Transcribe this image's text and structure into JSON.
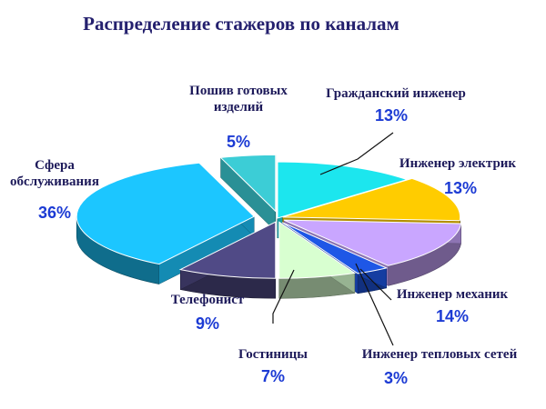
{
  "chart_data": {
    "type": "pie",
    "title": "Распределение стажеров по каналам",
    "labels": [
      "Гражданский инженер",
      "Инженер электрик",
      "Инженер механик",
      "Инженер  тепловых сетей",
      "Гостиницы",
      "Телефонист",
      "Сфера обслуживания",
      "Пошив готовых изделий"
    ],
    "label_lines": [
      [
        "Гражданский инженер"
      ],
      [
        "Инженер электрик"
      ],
      [
        "Инженер механик"
      ],
      [
        "Инженер  тепловых сетей"
      ],
      [
        "Гостиницы"
      ],
      [
        "Телефонист"
      ],
      [
        "Сфера",
        "обслуживания"
      ],
      [
        "Пошив готовых",
        "изделий"
      ]
    ],
    "values": [
      13,
      13,
      14,
      3,
      7,
      9,
      36,
      5
    ],
    "value_labels": [
      "13%",
      "13%",
      "14%",
      "3%",
      "7%",
      "9%",
      "36%",
      "5%"
    ],
    "colors": [
      "#1ce6ee",
      "#ffcc00",
      "#c9a6ff",
      "#1e57e6",
      "#d8ffd0",
      "#504a86",
      "#1cc6ff",
      "#3ccdd6"
    ]
  }
}
